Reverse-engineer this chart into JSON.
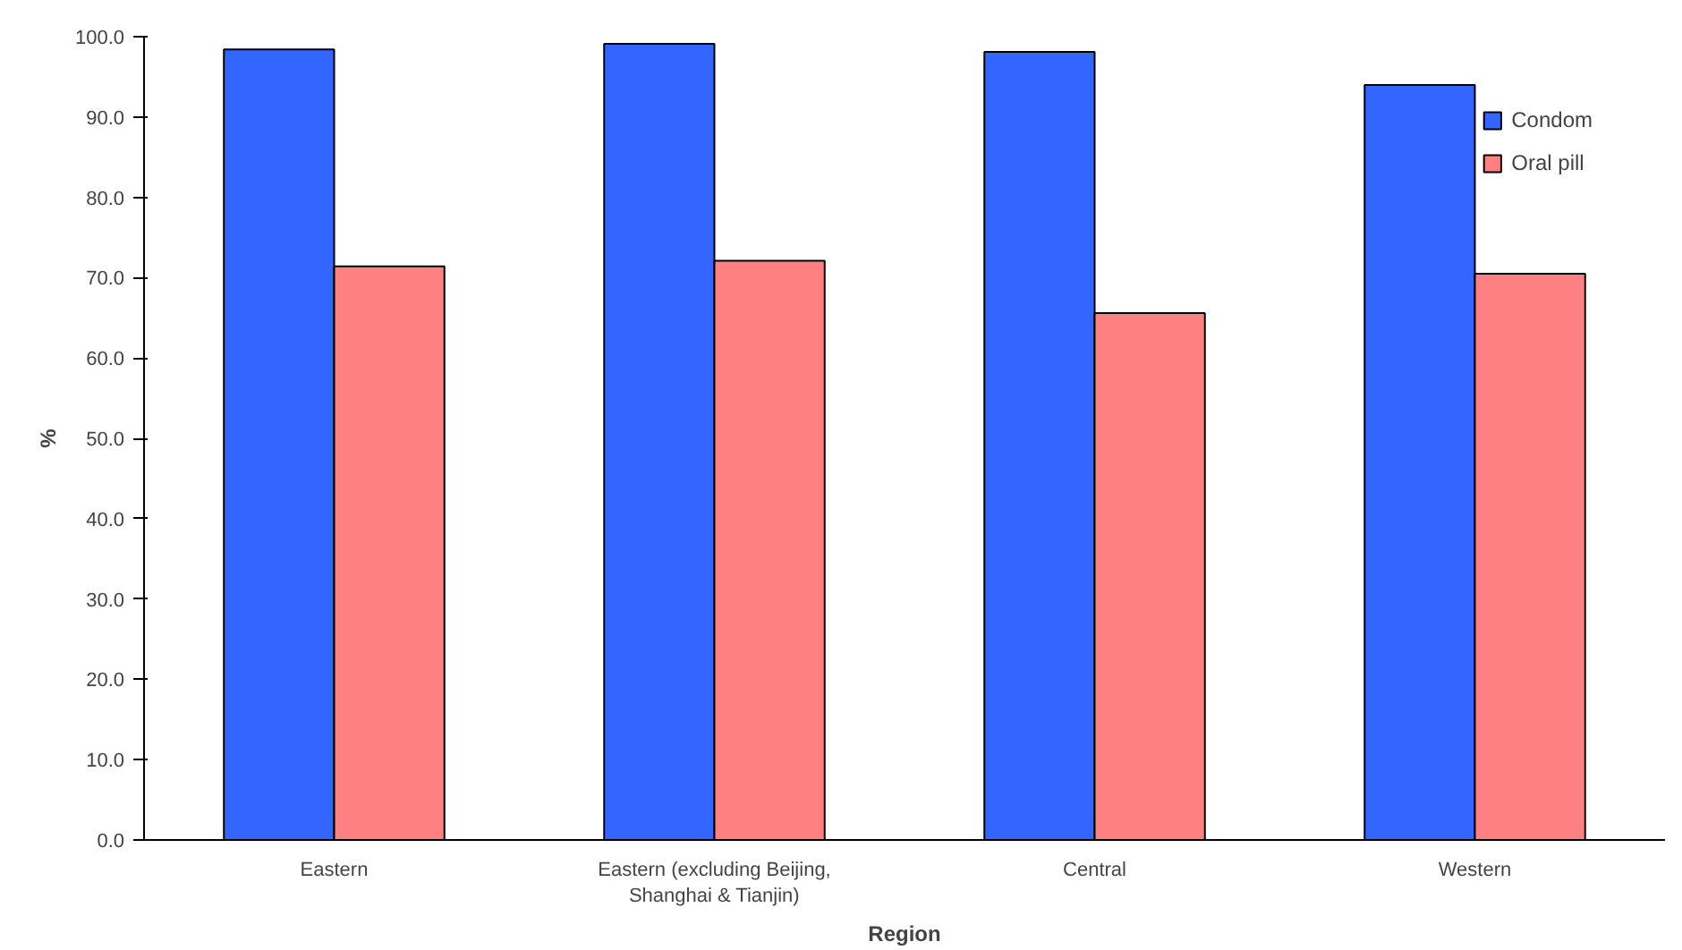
{
  "chart_data": {
    "type": "bar",
    "xlabel": "Region",
    "ylabel": "%",
    "categories": [
      "Eastern",
      "Eastern (excluding Beijing,\nShanghai & Tianjin)",
      "Central",
      "Western"
    ],
    "series": [
      {
        "name": "Condom",
        "color": "#3366ff",
        "values": [
          98.4,
          99.1,
          98.1,
          94.0
        ]
      },
      {
        "name": "Oral pill",
        "color": "#ff8080",
        "values": [
          71.4,
          72.1,
          65.6,
          70.5
        ]
      }
    ],
    "ylim": [
      0,
      100
    ],
    "yticks": [
      {
        "value": 0,
        "label": "0.0"
      },
      {
        "value": 10,
        "label": "10.0"
      },
      {
        "value": 20,
        "label": "20.0"
      },
      {
        "value": 30,
        "label": "30.0"
      },
      {
        "value": 40,
        "label": "40.0"
      },
      {
        "value": 50,
        "label": "50.0"
      },
      {
        "value": 60,
        "label": "60.0"
      },
      {
        "value": 70,
        "label": "70.0"
      },
      {
        "value": 80,
        "label": "80.0"
      },
      {
        "value": 90,
        "label": "90.0"
      },
      {
        "value": 100,
        "label": "100.0"
      }
    ],
    "grid": false,
    "legend": "top right"
  }
}
